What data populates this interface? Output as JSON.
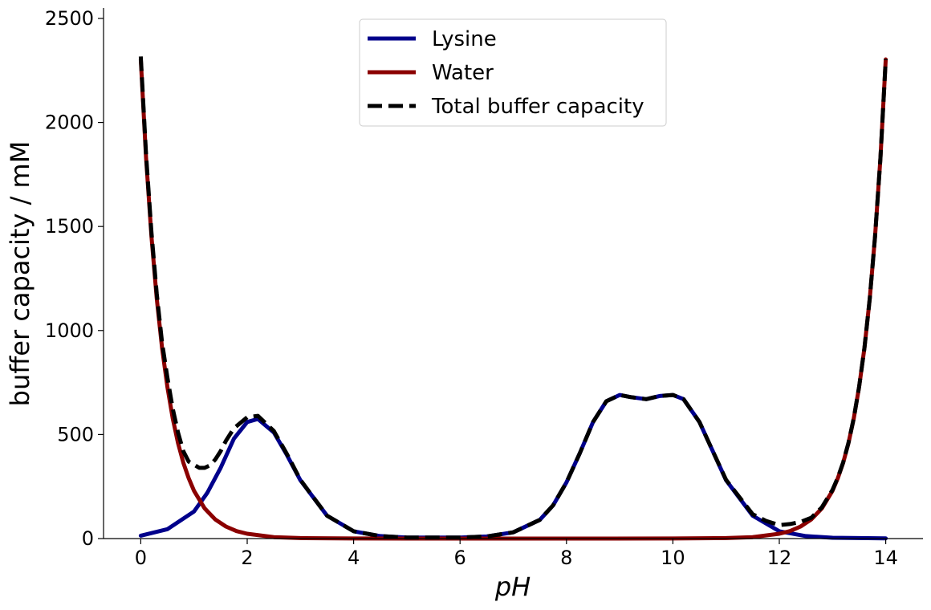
{
  "chart_data": {
    "type": "line",
    "xlabel": "pH",
    "ylabel": "buffer capacity / mM",
    "xlim": [
      -0.7,
      14.7
    ],
    "ylim": [
      0,
      2550
    ],
    "xticks": [
      0,
      2,
      4,
      6,
      8,
      10,
      12,
      14
    ],
    "yticks": [
      0,
      500,
      1000,
      1500,
      2000,
      2500
    ],
    "grid": false,
    "legend_position": "top-center",
    "series": [
      {
        "name": "Lysine",
        "color": "#00008b",
        "style": "solid",
        "x": [
          0,
          0.5,
          1,
          1.25,
          1.5,
          1.75,
          2,
          2.2,
          2.5,
          2.75,
          3,
          3.5,
          4,
          4.5,
          5,
          6,
          6.5,
          7,
          7.5,
          7.75,
          8,
          8.25,
          8.5,
          8.75,
          9,
          9.2,
          9.5,
          9.75,
          10,
          10.2,
          10.5,
          10.75,
          11,
          11.5,
          12,
          12.5,
          13,
          14
        ],
        "y": [
          14,
          45,
          130,
          220,
          340,
          480,
          560,
          575,
          510,
          400,
          280,
          110,
          35,
          12,
          5,
          5,
          10,
          30,
          90,
          160,
          270,
          410,
          560,
          660,
          690,
          680,
          670,
          685,
          690,
          670,
          560,
          420,
          280,
          110,
          35,
          12,
          4,
          1
        ]
      },
      {
        "name": "Water",
        "color": "#8b0000",
        "style": "solid",
        "x": [
          0,
          0.1,
          0.2,
          0.3,
          0.4,
          0.5,
          0.6,
          0.7,
          0.8,
          0.9,
          1,
          1.2,
          1.4,
          1.6,
          1.8,
          2,
          2.5,
          3,
          4,
          6,
          8,
          10,
          11,
          11.5,
          12,
          12.2,
          12.4,
          12.6,
          12.8,
          13,
          13.1,
          13.2,
          13.3,
          13.4,
          13.5,
          13.6,
          13.7,
          13.8,
          13.9,
          14
        ],
        "y": [
          2303,
          1829,
          1453,
          1154,
          917,
          728,
          578,
          459,
          365,
          290,
          230,
          145,
          92,
          58,
          36,
          23,
          7,
          2.3,
          0.2,
          0,
          0,
          0.2,
          2.3,
          7,
          23,
          36,
          58,
          92,
          145,
          230,
          290,
          365,
          459,
          578,
          728,
          917,
          1154,
          1453,
          1829,
          2303
        ]
      },
      {
        "name": "Total buffer capacity",
        "color": "#000000",
        "style": "dashed",
        "x": [
          0,
          0.1,
          0.2,
          0.3,
          0.4,
          0.5,
          0.6,
          0.7,
          0.8,
          0.9,
          1,
          1.1,
          1.2,
          1.3,
          1.4,
          1.5,
          1.6,
          1.75,
          2,
          2.2,
          2.5,
          2.75,
          3,
          3.5,
          4,
          4.5,
          5,
          6,
          6.5,
          7,
          7.5,
          7.75,
          8,
          8.25,
          8.5,
          8.75,
          9,
          9.2,
          9.5,
          9.75,
          10,
          10.2,
          10.5,
          10.75,
          11,
          11.5,
          11.75,
          12,
          12.2,
          12.4,
          12.6,
          12.8,
          13,
          13.1,
          13.2,
          13.3,
          13.4,
          13.5,
          13.6,
          13.7,
          13.8,
          13.9,
          14
        ],
        "y": [
          2317,
          1845,
          1472,
          1177,
          943,
          773,
          625,
          510,
          420,
          370,
          355,
          340,
          340,
          352,
          380,
          420,
          470,
          530,
          583,
          590,
          517,
          405,
          282,
          110,
          35,
          12,
          5,
          5,
          10,
          30,
          90,
          160,
          270,
          410,
          560,
          660,
          690,
          680,
          670,
          685,
          690,
          670,
          560,
          420,
          282,
          117,
          85,
          65,
          70,
          80,
          100,
          150,
          234,
          293,
          367,
          461,
          579,
          729,
          917,
          1154,
          1453,
          1829,
          2304
        ]
      }
    ]
  }
}
